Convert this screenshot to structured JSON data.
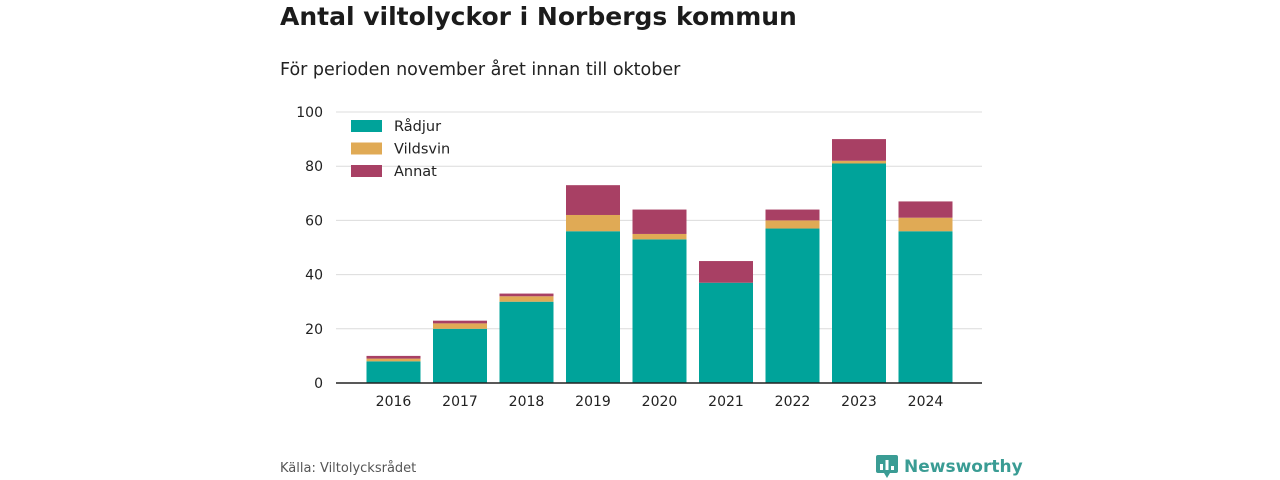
{
  "title": "Antal viltolyckor i Norbergs kommun",
  "subtitle": "För perioden november året innan till oktober",
  "source": "Källa: Viltolycksrådet",
  "brand": "Newsworthy",
  "chart_data": {
    "type": "bar",
    "stacked": true,
    "categories": [
      "2016",
      "2017",
      "2018",
      "2019",
      "2020",
      "2021",
      "2022",
      "2023",
      "2024"
    ],
    "series": [
      {
        "name": "Rådjur",
        "color": "#00a39a",
        "values": [
          8,
          20,
          30,
          56,
          53,
          37,
          57,
          81,
          56
        ]
      },
      {
        "name": "Vildsvin",
        "color": "#e0aa55",
        "values": [
          1,
          2,
          2,
          6,
          2,
          0,
          3,
          1,
          5
        ]
      },
      {
        "name": "Annat",
        "color": "#a84064",
        "values": [
          1,
          1,
          1,
          11,
          9,
          8,
          4,
          8,
          6
        ]
      }
    ],
    "ylim": [
      0,
      100
    ],
    "yticks": [
      0,
      20,
      40,
      60,
      80,
      100
    ],
    "grid": true,
    "legend": "top-left",
    "xlabel": "",
    "ylabel": ""
  }
}
